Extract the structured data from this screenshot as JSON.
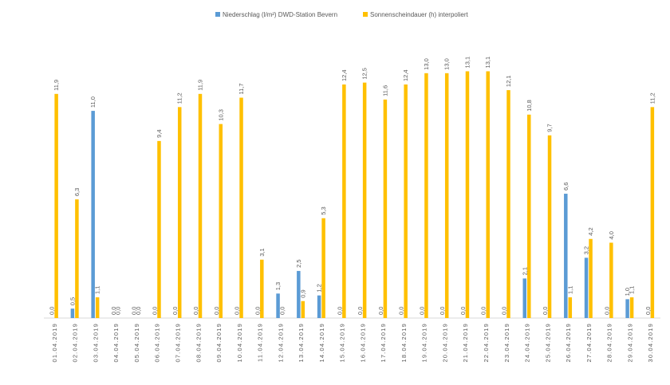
{
  "chart_data": {
    "type": "bar",
    "title": "",
    "xlabel": "",
    "ylabel": "",
    "ylim": [
      0,
      13.5
    ],
    "grid": false,
    "legend_position": "top",
    "categories": [
      "01.04.2019",
      "02.04.2019",
      "03.04.2019",
      "04.04.2019",
      "05.04.2019",
      "06.04.2019",
      "07.04.2019",
      "08.04.2019",
      "09.04.2019",
      "10.04.2019",
      "11.04.2019",
      "12.04.2019",
      "13.04.2019",
      "14.04.2019",
      "15.04.2019",
      "16.04.2019",
      "17.04.2019",
      "18.04.2019",
      "19.04.2019",
      "20.04.2019",
      "21.04.2019",
      "22.04.2019",
      "23.04.2019",
      "24.04.2019",
      "25.04.2019",
      "26.04.2019",
      "27.04.2019",
      "28.04.2019",
      "29.04.2019",
      "30.04.2019"
    ],
    "series": [
      {
        "name": "Niederschlag (l/m²) DWD-Station Bevern",
        "color": "#5b9bd5",
        "values": [
          0.0,
          0.5,
          11.0,
          0.0,
          0.0,
          0.0,
          0.0,
          0.0,
          0.0,
          0.0,
          0.0,
          1.3,
          2.5,
          1.2,
          0.0,
          0.0,
          0.0,
          0.0,
          0.0,
          0.0,
          0.0,
          0.0,
          0.0,
          2.1,
          0.0,
          6.6,
          3.2,
          0.0,
          1.0,
          0.0
        ],
        "labels": [
          "0,0",
          "0,5",
          "11,0",
          "0,0",
          "0,0",
          "0,0",
          "0,0",
          "0,0",
          "0,0",
          "0,0",
          "0,0",
          "1,3",
          "2,5",
          "1,2",
          "0,0",
          "0,0",
          "0,0",
          "0,0",
          "0,0",
          "0,0",
          "0,0",
          "0,0",
          "0,0",
          "2,1",
          "0,0",
          "6,6",
          "3,2",
          "0,0",
          "1,0",
          "0,0"
        ]
      },
      {
        "name": "Sonnenscheindauer (h) interpoliert",
        "color": "#ffc000",
        "values": [
          11.9,
          6.3,
          1.1,
          0.0,
          0.0,
          9.4,
          11.2,
          11.9,
          10.3,
          11.7,
          3.1,
          0.0,
          0.9,
          5.3,
          12.4,
          12.5,
          11.6,
          12.4,
          13.0,
          13.0,
          13.1,
          13.1,
          12.1,
          10.8,
          9.7,
          1.1,
          4.2,
          4.0,
          1.1,
          11.2
        ],
        "labels": [
          "11,9",
          "6,3",
          "1,1",
          "0,0",
          "0,0",
          "9,4",
          "11,2",
          "11,9",
          "10,3",
          "11,7",
          "3,1",
          "0,0",
          "0,9",
          "5,3",
          "12,4",
          "12,5",
          "11,6",
          "12,4",
          "13,0",
          "13,0",
          "13,1",
          "13,1",
          "12,1",
          "10,8",
          "9,7",
          "1,1",
          "4,2",
          "4,0",
          "1,1",
          "11,2"
        ]
      }
    ]
  }
}
